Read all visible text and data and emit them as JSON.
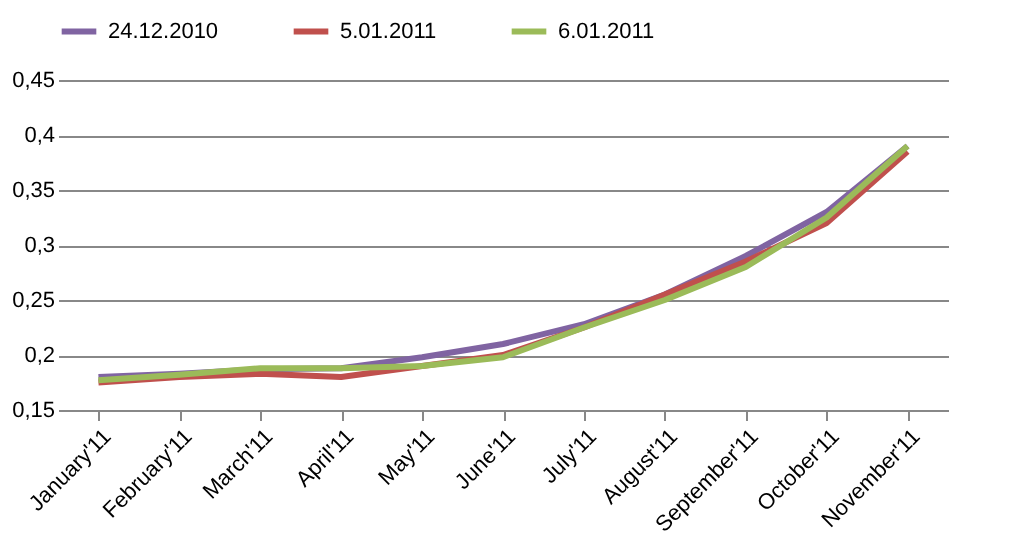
{
  "chart_data": {
    "type": "line",
    "categories": [
      "January'11",
      "February'11",
      "March'11",
      "April'11",
      "May'11",
      "June'11",
      "July'11",
      "August'11",
      "September'11",
      "October'11",
      "November'11"
    ],
    "series": [
      {
        "name": "24.12.2010",
        "color": "#8064a2",
        "values": [
          0.18,
          0.183,
          0.187,
          0.188,
          0.198,
          0.21,
          0.228,
          0.255,
          0.29,
          0.33,
          0.39
        ]
      },
      {
        "name": "5.01.2011",
        "color": "#c0504d",
        "values": [
          0.175,
          0.18,
          0.183,
          0.18,
          0.19,
          0.2,
          0.225,
          0.255,
          0.285,
          0.32,
          0.385
        ]
      },
      {
        "name": "6.01.2011",
        "color": "#9bbb59",
        "values": [
          0.177,
          0.182,
          0.188,
          0.188,
          0.19,
          0.198,
          0.225,
          0.25,
          0.28,
          0.325,
          0.39
        ]
      }
    ],
    "ylim": [
      0.15,
      0.45
    ],
    "yticks": [
      {
        "value": 0.15,
        "label": "0,15"
      },
      {
        "value": 0.2,
        "label": "0,2"
      },
      {
        "value": 0.25,
        "label": "0,25"
      },
      {
        "value": 0.3,
        "label": "0,3"
      },
      {
        "value": 0.35,
        "label": "0,35"
      },
      {
        "value": 0.4,
        "label": "0,4"
      },
      {
        "value": 0.45,
        "label": "0,45"
      }
    ],
    "grid": "y",
    "legend": "top",
    "marker": "none",
    "line_style": "solid"
  }
}
